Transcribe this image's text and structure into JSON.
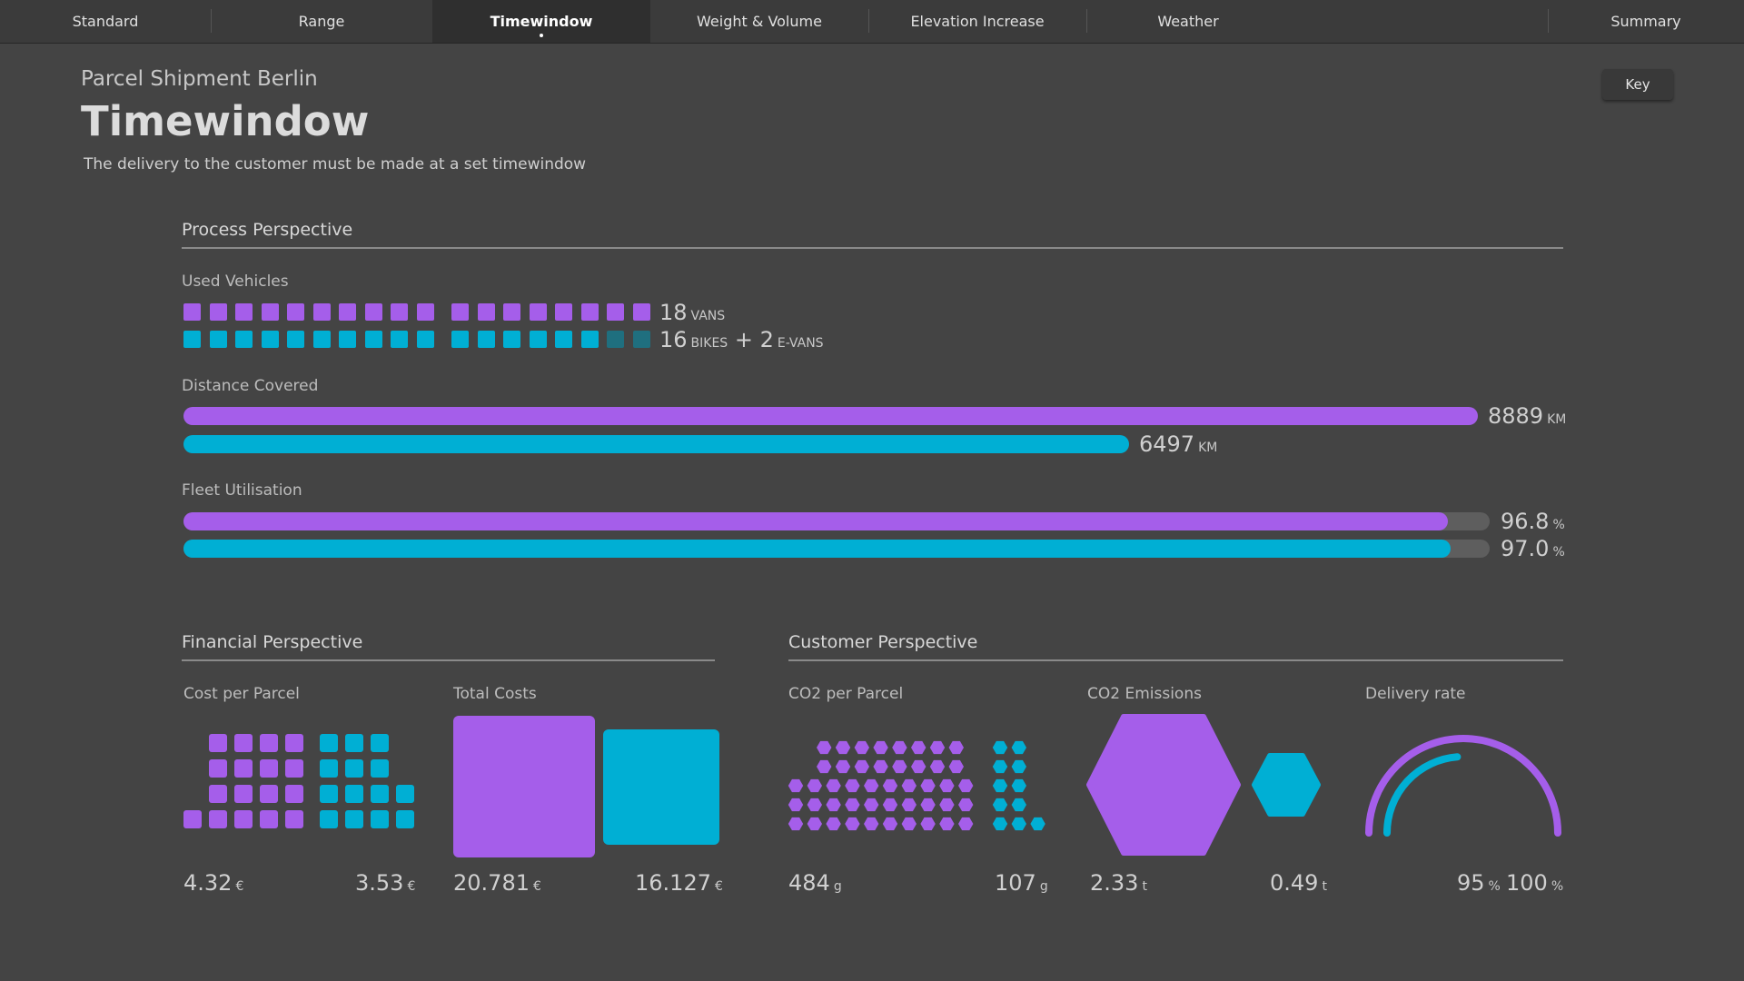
{
  "tabs": [
    {
      "label": "Standard",
      "active": false
    },
    {
      "label": "Range",
      "active": false
    },
    {
      "label": "Timewindow",
      "active": true
    },
    {
      "label": "Weight & Volume",
      "active": false
    },
    {
      "label": "Elevation Increase",
      "active": false
    },
    {
      "label": "Weather",
      "active": false
    },
    {
      "label": "Summary",
      "active": false
    }
  ],
  "header": {
    "subtitle": "Parcel Shipment Berlin",
    "title": "Timewindow",
    "description": "The delivery to the customer must be made at a set timewindow",
    "key_button": "Key"
  },
  "colors": {
    "primary": "#a55eea",
    "secondary": "#00afd4",
    "secondary_dim": "#1f6f7f",
    "track": "#5e5e5e"
  },
  "process": {
    "title": "Process Perspective",
    "used_vehicles": {
      "label": "Used Vehicles",
      "primary": {
        "count": 18,
        "value": "18",
        "unit": "VANS"
      },
      "secondary": {
        "count": 16,
        "extra": 2,
        "value": "16",
        "unit": "BIKES",
        "plus": "+ 2",
        "extra_unit": "E-VANS"
      }
    },
    "distance": {
      "label": "Distance Covered",
      "primary": {
        "fraction": 1.0,
        "value": "8889",
        "unit": "KM"
      },
      "secondary": {
        "fraction": 0.7306,
        "value": "6497",
        "unit": "KM"
      }
    },
    "fleet": {
      "label": "Fleet Utilisation",
      "primary": {
        "fraction": 0.968,
        "value": "96.8",
        "unit": "%"
      },
      "secondary": {
        "fraction": 0.97,
        "value": "97.0",
        "unit": "%"
      }
    }
  },
  "financial": {
    "title": "Financial Perspective",
    "cost_per_parcel": {
      "label": "Cost per Parcel",
      "primary": {
        "value": "4.32",
        "unit": "€"
      },
      "secondary": {
        "value": "3.53",
        "unit": "€"
      }
    },
    "total_costs": {
      "label": "Total Costs",
      "primary": {
        "value": "20.781",
        "unit": "€"
      },
      "secondary": {
        "value": "16.127",
        "unit": "€"
      }
    }
  },
  "customer": {
    "title": "Customer Perspective",
    "co2_per_parcel": {
      "label": "CO2 per Parcel",
      "primary": {
        "value": "484",
        "unit": "g"
      },
      "secondary": {
        "value": "107",
        "unit": "g"
      }
    },
    "co2_emissions": {
      "label": "CO2 Emissions",
      "primary": {
        "value": "2.33",
        "unit": "t"
      },
      "secondary": {
        "value": "0.49",
        "unit": "t"
      }
    },
    "delivery_rate": {
      "label": "Delivery rate",
      "primary": {
        "value": "95",
        "unit": "%",
        "fraction": 0.95
      },
      "secondary": {
        "value": "100",
        "unit": "%",
        "fraction": 1.0
      }
    }
  }
}
